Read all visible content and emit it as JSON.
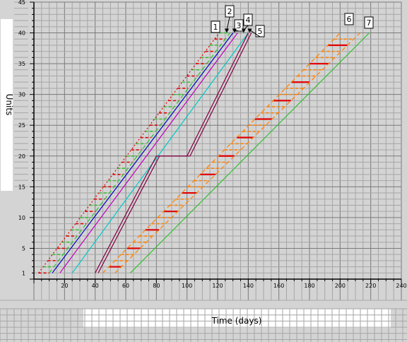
{
  "chart_data": {
    "type": "line",
    "title": "",
    "xlabel": "Time (days)",
    "ylabel": "Units",
    "xlim": [
      0,
      240
    ],
    "ylim": [
      0,
      45
    ],
    "x_ticks": [
      20,
      40,
      60,
      80,
      100,
      120,
      140,
      160,
      180,
      200,
      220,
      240
    ],
    "y_ticks": [
      1,
      5,
      10,
      15,
      20,
      25,
      30,
      35,
      40,
      45
    ],
    "grid": true,
    "series": [
      {
        "id": "s1",
        "color": "#e00000",
        "style": "dotted-dash",
        "points": [
          [
            3,
            1
          ],
          [
            121,
            40
          ]
        ]
      },
      {
        "id": "s1b",
        "color": "#30c030",
        "style": "dashed",
        "points": [
          [
            10,
            1
          ],
          [
            128,
            40
          ]
        ]
      },
      {
        "id": "s2",
        "color": "#0000c0",
        "style": "solid",
        "points": [
          [
            12,
            1
          ],
          [
            130,
            40
          ]
        ]
      },
      {
        "id": "s3",
        "color": "#c000c0",
        "style": "solid",
        "points": [
          [
            17,
            1
          ],
          [
            133,
            40
          ]
        ]
      },
      {
        "id": "s4",
        "color": "#00c8c8",
        "style": "solid",
        "points": [
          [
            25,
            1
          ],
          [
            140,
            40
          ]
        ]
      },
      {
        "id": "s5a",
        "color": "#800040",
        "style": "solid",
        "points": [
          [
            40,
            1
          ],
          [
            80,
            20
          ],
          [
            100,
            20
          ],
          [
            140,
            40
          ]
        ]
      },
      {
        "id": "s5b",
        "color": "#800040",
        "style": "solid",
        "points": [
          [
            42,
            1
          ],
          [
            82,
            20
          ],
          [
            102,
            20
          ],
          [
            142,
            40
          ]
        ]
      },
      {
        "id": "s6a",
        "color": "#ff8000",
        "style": "dashed",
        "points": [
          [
            45,
            1
          ],
          [
            200,
            40
          ]
        ]
      },
      {
        "id": "s6b",
        "color": "#ff8000",
        "style": "dashed",
        "points": [
          [
            53,
            1
          ],
          [
            213,
            40
          ]
        ]
      },
      {
        "id": "s7",
        "color": "#30c030",
        "style": "solid",
        "points": [
          [
            63,
            1
          ],
          [
            219,
            40
          ]
        ]
      }
    ],
    "bands": [
      {
        "id": "band1",
        "left": "s1",
        "right": "s1b",
        "y_start": 1,
        "y_end": 40,
        "y_step": 1,
        "rung_colors": [
          "#e00000",
          "#30c030"
        ],
        "rung_style": "dashed"
      },
      {
        "id": "band6",
        "left": "s6a",
        "right": "s6b",
        "y_start": 2,
        "y_end": 39,
        "y_step": 1,
        "rung_colors": [
          "#e00000",
          "#ff8000",
          "#ff8000"
        ],
        "rung_style": "alternating"
      }
    ],
    "callouts": [
      {
        "label": "1",
        "target": [
          121,
          40
        ]
      },
      {
        "label": "2",
        "target": [
          126,
          40
        ]
      },
      {
        "label": "3",
        "target": [
          131,
          40
        ]
      },
      {
        "label": "4",
        "target": [
          137,
          40
        ]
      },
      {
        "label": "5",
        "target": [
          141,
          40
        ]
      },
      {
        "label": "6",
        "target": [
          203,
          40
        ]
      },
      {
        "label": "7",
        "target": [
          215,
          40
        ]
      }
    ]
  }
}
